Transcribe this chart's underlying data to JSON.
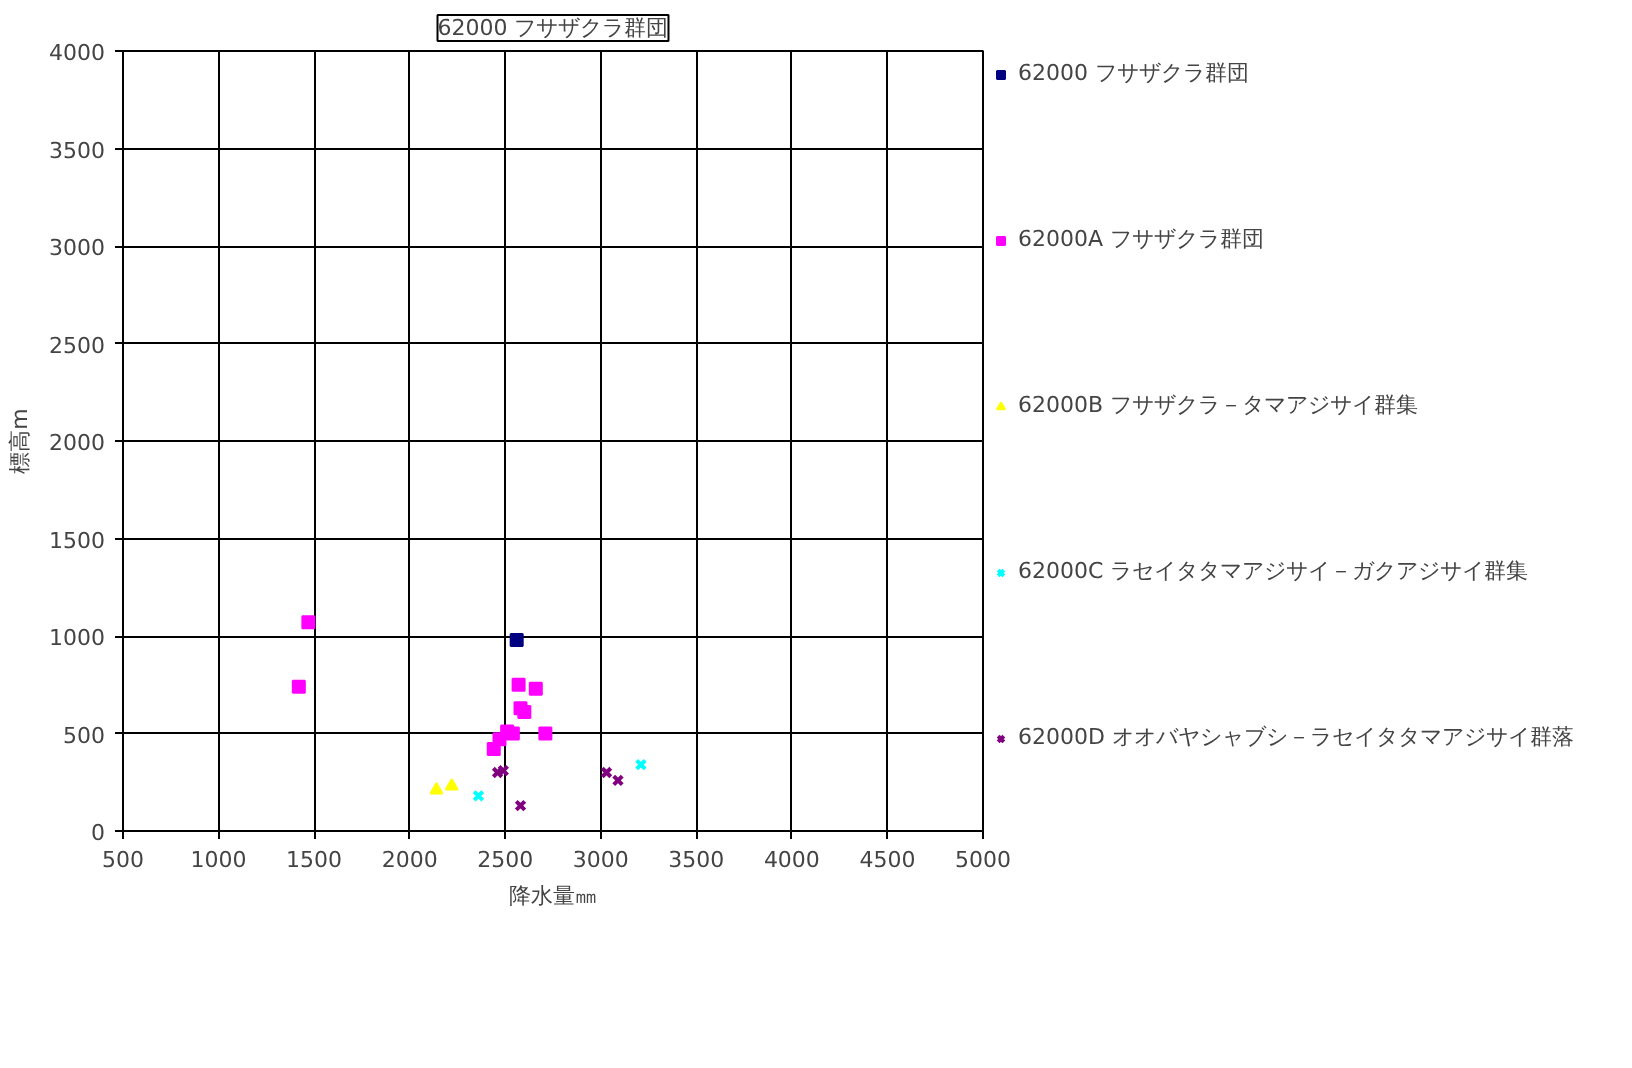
{
  "chart_data": {
    "type": "scatter",
    "title": "62000 フサザクラ群団",
    "xlabel": "降水量㎜",
    "ylabel": "標高m",
    "xlim": [
      500,
      5000
    ],
    "xticks": [
      500,
      1000,
      1500,
      2000,
      2500,
      3000,
      3500,
      4000,
      4500,
      5000
    ],
    "ylim": [
      0,
      4000
    ],
    "yticks": [
      0,
      500,
      1000,
      1500,
      2000,
      2500,
      3000,
      3500,
      4000
    ],
    "grid": true,
    "legend": "right",
    "series": [
      {
        "name": "62000 フサザクラ群団",
        "color": "#000080",
        "marker": "square",
        "x": [
          2560
        ],
        "values": [
          980
        ]
      },
      {
        "name": "62000A フサザクラ群団",
        "color": "#ff00ff",
        "marker": "square",
        "x": [
          1470,
          1420,
          2570,
          2660,
          2580,
          2600,
          2510,
          2540,
          2470,
          2440,
          2710
        ],
        "values": [
          1070,
          740,
          750,
          730,
          630,
          610,
          510,
          500,
          470,
          420,
          500
        ]
      },
      {
        "name": "62000B フサザクラ－タマアジサイ群集",
        "color": "#ffff00",
        "marker": "triangle",
        "x": [
          2140,
          2220
        ],
        "values": [
          210,
          230
        ]
      },
      {
        "name": "62000C ラセイタタマアジサイ－ガクアジサイ群集",
        "color": "#00ffff",
        "marker": "cross",
        "x": [
          2360,
          3210
        ],
        "values": [
          180,
          340
        ]
      },
      {
        "name": "62000D オオバヤシャブシ－ラセイタタマアジサイ群落",
        "color": "#800080",
        "marker": "cross",
        "x": [
          2490,
          2460,
          2580,
          3030,
          3090
        ],
        "values": [
          310,
          300,
          130,
          300,
          260
        ]
      }
    ]
  }
}
